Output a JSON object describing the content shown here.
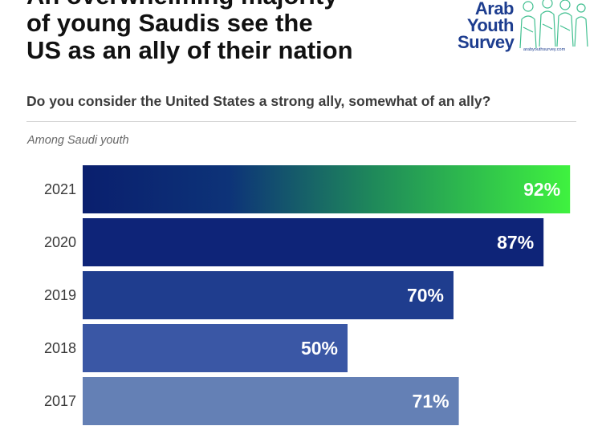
{
  "header": {
    "headline_lines": [
      "An overwhelming majority",
      "of young Saudis see the",
      "US as an ally of their nation"
    ]
  },
  "logo": {
    "lines": [
      "Arab",
      "Youth",
      "Survey"
    ],
    "url": "arabyouthsurvey.com",
    "color": "#1d3d8f",
    "art_color": "#3fbf8f",
    "icon": "group-of-people-illustration"
  },
  "question": "Do you consider the United States a strong ally, somewhat of an ally?",
  "subtitle": "Among Saudi youth",
  "chart_data": {
    "type": "bar",
    "orientation": "horizontal",
    "categories": [
      "2021",
      "2020",
      "2019",
      "2018",
      "2017"
    ],
    "values": [
      92,
      87,
      70,
      50,
      71
    ],
    "value_labels": [
      "92%",
      "87%",
      "70%",
      "50%",
      "71%"
    ],
    "unit": "%",
    "xlim": [
      0,
      100
    ],
    "grid": false,
    "legend": "none",
    "colors": [
      "gradient:#0a1f6e-#3ff23f",
      "#0e2478",
      "#1f3d8e",
      "#3a57a5",
      "#6480b5"
    ]
  }
}
